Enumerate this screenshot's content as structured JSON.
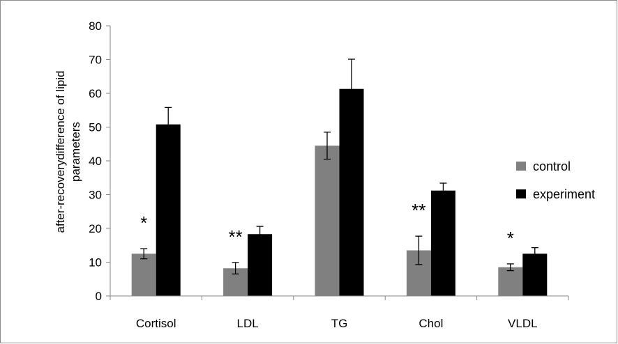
{
  "chart_data": {
    "type": "bar",
    "categories": [
      "Cortisol",
      "LDL",
      "TG",
      "Chol",
      "VLDL"
    ],
    "series": [
      {
        "name": "control",
        "color": "#808080",
        "values": [
          12.5,
          8.2,
          44.5,
          13.5,
          8.5
        ],
        "errors": [
          1.5,
          1.7,
          4.0,
          4.2,
          1.0
        ]
      },
      {
        "name": "experiment",
        "color": "#000000",
        "values": [
          50.8,
          18.3,
          61.3,
          31.2,
          12.5
        ],
        "errors": [
          5.0,
          2.3,
          8.8,
          2.2,
          1.8
        ]
      }
    ],
    "annotations": [
      "*",
      "**",
      "",
      "**",
      "*"
    ],
    "ylabel_lines": [
      "after-recoverydifference of  lipid",
      "parameters"
    ],
    "ylim": [
      0,
      80
    ],
    "yticks": [
      0,
      10,
      20,
      30,
      40,
      50,
      60,
      70,
      80
    ],
    "grid": false,
    "legend_position": "right"
  }
}
